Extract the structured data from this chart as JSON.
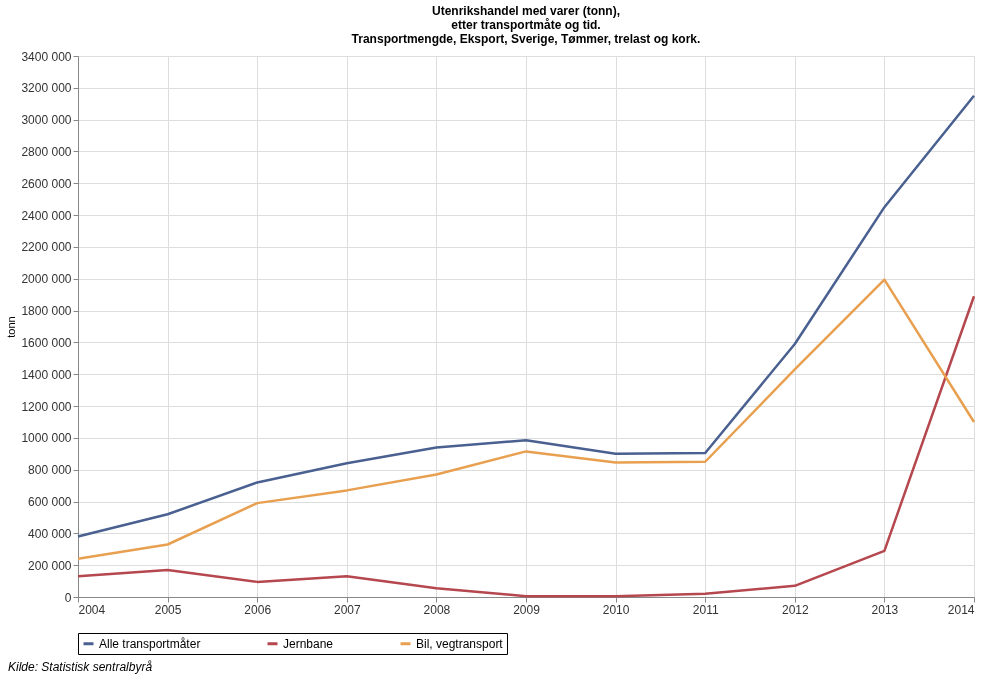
{
  "chart_data": {
    "type": "line",
    "title": "Utenrikshandel med varer (tonn),\netter transportmåte og tid.\nTransportmengde, Eksport, Sverige, Tømmer, trelast og kork.",
    "ylabel": "tonn",
    "x": [
      2004,
      2005,
      2006,
      2007,
      2008,
      2009,
      2010,
      2011,
      2012,
      2013,
      2014
    ],
    "series": [
      {
        "name": "Alle transportmåter",
        "color": "#4a6090",
        "values": [
          380000,
          520000,
          720000,
          840000,
          940000,
          985000,
          900000,
          905000,
          1590000,
          2450000,
          3150000
        ]
      },
      {
        "name": "Jernbane",
        "color": "#b5474e",
        "values": [
          130000,
          170000,
          95000,
          130000,
          55000,
          5000,
          5000,
          20000,
          70000,
          290000,
          1890000
        ]
      },
      {
        "name": "Bil, vegtransport",
        "color": "#e8a050",
        "values": [
          240000,
          330000,
          590000,
          670000,
          770000,
          915000,
          845000,
          850000,
          1430000,
          1995000,
          1100000
        ]
      }
    ],
    "xlim": [
      2004,
      2014
    ],
    "xticks": [
      2004,
      2005,
      2006,
      2007,
      2008,
      2009,
      2010,
      2011,
      2012,
      2013,
      2014
    ],
    "ylim": [
      0,
      3400000
    ],
    "yticks": [
      {
        "value": 0,
        "label": "0"
      },
      {
        "value": 200000,
        "label": "200 000"
      },
      {
        "value": 400000,
        "label": "400 000"
      },
      {
        "value": 600000,
        "label": "600 000"
      },
      {
        "value": 800000,
        "label": "800 000"
      },
      {
        "value": 1000000,
        "label": "1000 000"
      },
      {
        "value": 1200000,
        "label": "1200 000"
      },
      {
        "value": 1400000,
        "label": "1400 000"
      },
      {
        "value": 1600000,
        "label": "1600 000"
      },
      {
        "value": 1800000,
        "label": "1800 000"
      },
      {
        "value": 2000000,
        "label": "2000 000"
      },
      {
        "value": 2200000,
        "label": "2200 000"
      },
      {
        "value": 2400000,
        "label": "2400 000"
      },
      {
        "value": 2600000,
        "label": "2600 000"
      },
      {
        "value": 2800000,
        "label": "2800 000"
      },
      {
        "value": 3000000,
        "label": "3000 000"
      },
      {
        "value": 3200000,
        "label": "3200 000"
      },
      {
        "value": 3400000,
        "label": "3400 000"
      }
    ],
    "grid": true,
    "legend": "bottom",
    "marker": "none",
    "line_style": "solid",
    "annotations": [
      "Kilde: Statistisk sentralbyrå"
    ]
  }
}
